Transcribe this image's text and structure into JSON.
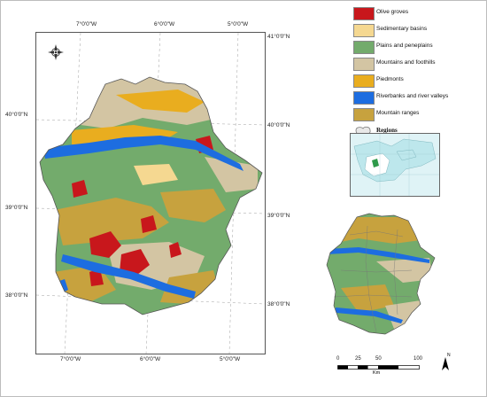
{
  "legend": {
    "items": [
      {
        "label": "Olive groves",
        "color": "#c8171c"
      },
      {
        "label": "Sedimentary basins",
        "color": "#f5d891"
      },
      {
        "label": "Plains and peneplains",
        "color": "#73ab6c"
      },
      {
        "label": "Mountains and foothills",
        "color": "#d3c5a3"
      },
      {
        "label": "Piedmonts",
        "color": "#e9ad1f"
      },
      {
        "label": "Riverbanks and river valleys",
        "color": "#1d6de0"
      },
      {
        "label": "Mountain ranges",
        "color": "#c7a23e"
      }
    ],
    "regions_label": "Regions"
  },
  "map": {
    "top_longitudes": [
      "7°0'0\"W",
      "6°0'0\"W",
      "5°0'0\"W"
    ],
    "bottom_longitudes": [
      "7°0'0\"W",
      "6°0'0\"W",
      "5°0'0\"W"
    ],
    "left_latitudes": [
      "40°0'0\"N",
      "39°0'0\"N",
      "38°0'0\"N"
    ],
    "right_latitudes": [
      "41°0'0\"N",
      "40°0'0\"N",
      "39°0'0\"N",
      "38°0'0\"N"
    ],
    "north_arrow_icon": "compass-rose-icon"
  },
  "scale": {
    "ticks": [
      "0",
      "25",
      "50",
      "100"
    ],
    "unit": "Km",
    "north_label": "N"
  }
}
